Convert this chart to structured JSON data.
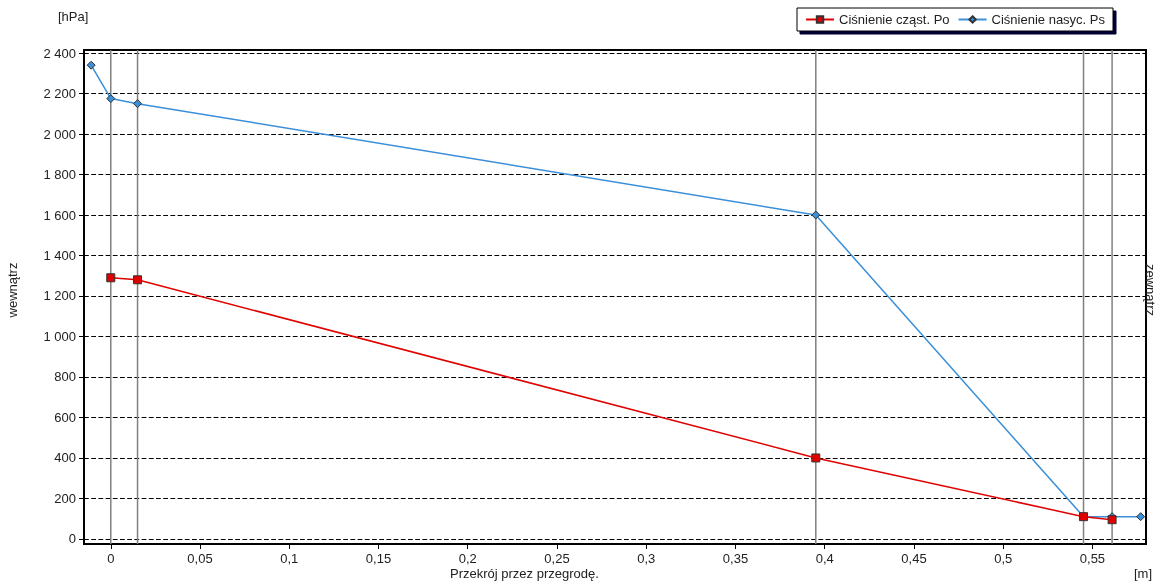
{
  "chart_data": {
    "type": "line",
    "ylabel": "[hPa]",
    "xlabel": "Przekrój przez przegrodę.",
    "annotations": [
      "wewnątrz",
      "zewnątrz",
      "[m]"
    ],
    "series": [
      {
        "name": "Ciśnienie cząst. Po",
        "color": "#e00000",
        "marker": "square",
        "x": [
          0,
          0.015,
          0.395,
          0.545,
          0.561
        ],
        "values": [
          1290,
          1280,
          400,
          110,
          95
        ]
      },
      {
        "name": "Ciśnienie nasyc. Ps",
        "color": "#3a8fd8",
        "marker": "diamond",
        "x": [
          -0.011,
          0,
          0.015,
          0.395,
          0.545,
          0.561,
          0.577
        ],
        "values": [
          2340,
          2175,
          2150,
          1600,
          110,
          110,
          110
        ]
      }
    ],
    "xlim": [
      -0.015,
      0.58
    ],
    "xticks": [
      0,
      {
        "value": 0.05,
        "label": "0,05"
      },
      {
        "value": 0.1,
        "label": "0,1"
      },
      {
        "value": 0.15,
        "label": "0,15"
      },
      {
        "value": 0.2,
        "label": "0,2"
      },
      {
        "value": 0.25,
        "label": "0,25"
      },
      {
        "value": 0.3,
        "label": "0,3"
      },
      {
        "value": 0.35,
        "label": "0,35"
      },
      {
        "value": 0.4,
        "label": "0,4"
      },
      {
        "value": 0.45,
        "label": "0,45"
      },
      {
        "value": 0.5,
        "label": "0,5"
      },
      {
        "value": 0.55,
        "label": "0,55"
      }
    ],
    "ylim": [
      -25,
      2415
    ],
    "yticks": [
      0,
      200,
      400,
      600,
      800,
      {
        "value": 1000,
        "label": "1 000"
      },
      {
        "value": 1200,
        "label": "1 200"
      },
      {
        "value": 1400,
        "label": "1 400"
      },
      {
        "value": 1600,
        "label": "1 600"
      },
      {
        "value": 1800,
        "label": "1 800"
      },
      {
        "value": 2000,
        "label": "2 000"
      },
      {
        "value": 2200,
        "label": "2 200"
      },
      {
        "value": 2400,
        "label": "2 400"
      }
    ],
    "ref_lines": [
      {
        "axis": "x",
        "value": 0,
        "color": "#808080"
      },
      {
        "axis": "x",
        "value": 0.015,
        "color": "#808080"
      },
      {
        "axis": "x",
        "value": 0.395,
        "color": "#808080"
      },
      {
        "axis": "x",
        "value": 0.545,
        "color": "#808080"
      },
      {
        "axis": "x",
        "value": 0.561,
        "color": "#808080"
      }
    ],
    "grid": "y",
    "line_style": "solid",
    "legend": "top right"
  }
}
